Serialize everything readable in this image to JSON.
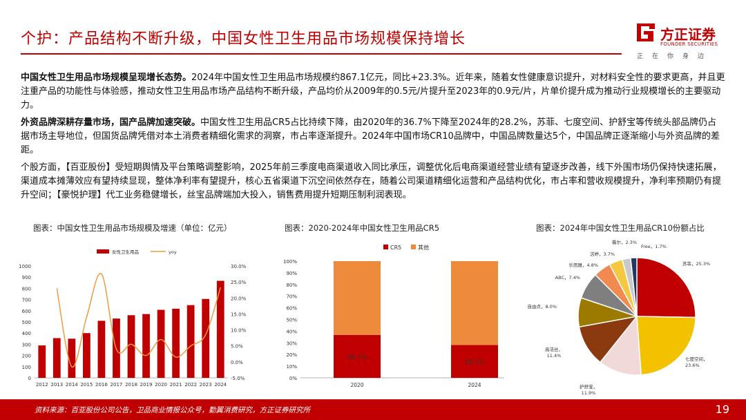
{
  "header": {
    "title": "个护：产品结构不断升级，中国女性卫生用品市场规模保持增长",
    "logo_name": "方正证券",
    "logo_en": "FOUNDER SECURITIES",
    "logo_slogan": "正在你身边"
  },
  "paragraphs": [
    {
      "lead": "中国女性卫生用品市场规模呈现增长态势。",
      "body": "2024年中国女性卫生用品市场规模约867.1亿元，同比+23.3%。近年来，随着女性健康意识提升，对材料安全性的要求更高，并且更注重产品的功能性与体验感，推动女性卫生用品市场产品结构不断升级，产品均价从2009年的0.5元/片提升至2023年的0.9元/片，片单价提升成为推动行业规模增长的主要驱动力。"
    },
    {
      "lead": "外资品牌深耕存量市场，国产品牌加速突破。",
      "body": "中国女性卫生用品CR5占比持续下降，由2020年的36.7%下降至2024年的28.2%，苏菲、七度空间、护舒宝等传统头部品牌仍占据市场主导地位，但国货品牌凭借对本土消费者精细化需求的洞察，市占率逐渐提升。2024年中国市场CR10品牌中，中国品牌数量达5个，中国品牌正逐渐缩小与外资品牌的差距。"
    },
    {
      "lead": "",
      "body": "个股方面，【百亚股份】受短期舆情及平台策略调整影响，2025年前三季度电商渠道收入同比承压，调整优化后电商渠道经营业绩有望逐步改善，线下外围市场仍保持快速拓展，渠道成本摊薄效应有望持续显现，整体净利率有望提升，核心五省渠道下沉空间依然存在，随着公司渠道精细化运营和产品结构优化，市占率和营收规模提升，净利率预期仍有提升空间；【豪悦护理】代工业务稳健增长，丝宝品牌端加大投入，销售费用提升短期压制利润表现。"
    }
  ],
  "chart_titles": {
    "c1": "图表：中国女性卫生用品市场规模及增速（单位：亿元）",
    "c2": "图表：2020-2024年中国女性卫生用品CR5",
    "c3": "图表：2024年中国女性卫生用品CR10份额占比"
  },
  "chart_data": [
    {
      "type": "bar",
      "title": "图表：中国女性卫生用品市场规模及增速（单位：亿元）",
      "categories": [
        "2012",
        "2013",
        "2014",
        "2015",
        "2016",
        "2017",
        "2018",
        "2019",
        "2020",
        "2021",
        "2022",
        "2023",
        "2024"
      ],
      "series": [
        {
          "name": "女性卫生用品",
          "type": "bar",
          "axis": "left",
          "color": "#c00000",
          "values": [
            290,
            355,
            350,
            400,
            510,
            530,
            560,
            570,
            608,
            618,
            650,
            705,
            867.1
          ]
        },
        {
          "name": "yoy",
          "type": "line",
          "axis": "right",
          "color": "#ee9b3c",
          "values": [
            null,
            23.0,
            -1.5,
            14.0,
            27.5,
            4.0,
            5.5,
            2.0,
            7.0,
            1.5,
            5.0,
            8.5,
            23.3
          ]
        }
      ],
      "left_ticks": [
        "0",
        "100",
        "200",
        "300",
        "400",
        "500",
        "600",
        "700",
        "800",
        "900",
        "1000"
      ],
      "right_ticks": [
        "-5.0%",
        "0.0%",
        "5.0%",
        "10.0%",
        "15.0%",
        "20.0%",
        "25.0%",
        "30.0%"
      ],
      "ylim": [
        0,
        1000
      ],
      "y2lim": [
        -5,
        30
      ],
      "legend": "top"
    },
    {
      "type": "bar",
      "stacked": true,
      "title": "图表：2020-2024年中国女性卫生用品CR5",
      "categories": [
        "2020",
        "2024"
      ],
      "series": [
        {
          "name": "CR5",
          "color": "#c00000",
          "values": [
            36.7,
            28.2
          ],
          "labels": [
            "36.7%",
            "28.2%"
          ]
        },
        {
          "name": "其他",
          "color": "#ee8a3c",
          "values": [
            63.3,
            71.8
          ]
        }
      ],
      "y_ticks": [
        "0%",
        "10%",
        "20%",
        "30%",
        "40%",
        "50%",
        "60%",
        "70%",
        "80%",
        "90%",
        "100%"
      ],
      "ylim": [
        0,
        100
      ],
      "legend": "top"
    },
    {
      "type": "pie",
      "title": "图表：2024年中国女性卫生用品CR10份额占比",
      "slices": [
        {
          "name": "苏菲",
          "value": 25.3,
          "label": "苏菲，25.3%",
          "color": "#c00000"
        },
        {
          "name": "七度空间",
          "value": 23.6,
          "label": "七度空间，23.6%",
          "color": "#f2c200"
        },
        {
          "name": "护舒宝",
          "value": 11.9,
          "label": "护舒宝，11.9%",
          "color": "#f2d9d9"
        },
        {
          "name": "高洁丝",
          "value": 11.4,
          "label": "高洁丝，11.4%",
          "color": "#8b3a0f"
        },
        {
          "name": "自由点",
          "value": 8.0,
          "label": "自由点，8.0%",
          "color": "#9c7a00"
        },
        {
          "name": "ABC",
          "value": 7.4,
          "label": "ABC，7.4%",
          "color": "#7f7f7f"
        },
        {
          "name": "乐而雅",
          "value": 4.8,
          "label": "乐而雅，4.8%",
          "color": "#f08a50"
        },
        {
          "name": "洁婷",
          "value": 3.7,
          "label": "洁婷，3.7%",
          "color": "#f5c842"
        },
        {
          "name": "薇尔",
          "value": 2.3,
          "label": "薇尔，2.3%",
          "color": "#c9c9c9"
        },
        {
          "name": "Free",
          "value": 1.7,
          "label": "Free，1.7%",
          "color": "#1f3864"
        }
      ]
    }
  ],
  "footer": {
    "source": "资料来源：百亚股份公司公告，卫品商业情报公众号，勤翼消费研究，方正证券研究所",
    "page": "19"
  },
  "colors": {
    "brand": "#c00000",
    "accent": "#ee8a3c"
  }
}
